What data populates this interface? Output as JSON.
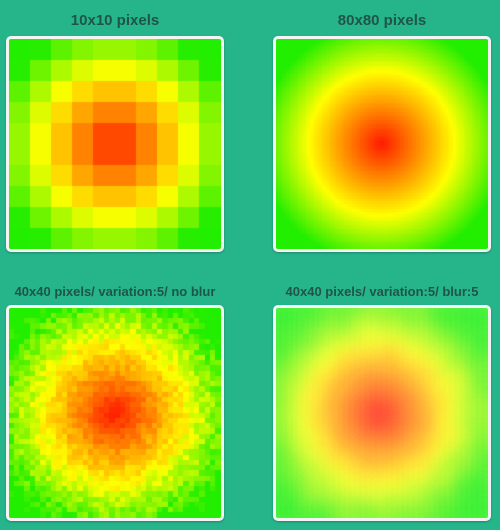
{
  "panels": [
    {
      "label": "10x10 pixels",
      "grid": 10,
      "variation": 0,
      "blur": 0
    },
    {
      "label": "80x80 pixels",
      "grid": 80,
      "variation": 0,
      "blur": 0
    },
    {
      "label": "40x40 pixels/ variation:5/ no blur",
      "grid": 40,
      "variation": 5,
      "blur": 0
    },
    {
      "label": "40x40 pixels/ variation:5/ blur:5",
      "grid": 40,
      "variation": 5,
      "blur": 5
    }
  ],
  "colors": {
    "background": "#26b58b",
    "title": "#1f5548",
    "panel_border": "#f4f4f4",
    "gradient_center": "#ff1a00",
    "gradient_mid": "#ffff00",
    "gradient_edge": "#22ee00"
  }
}
